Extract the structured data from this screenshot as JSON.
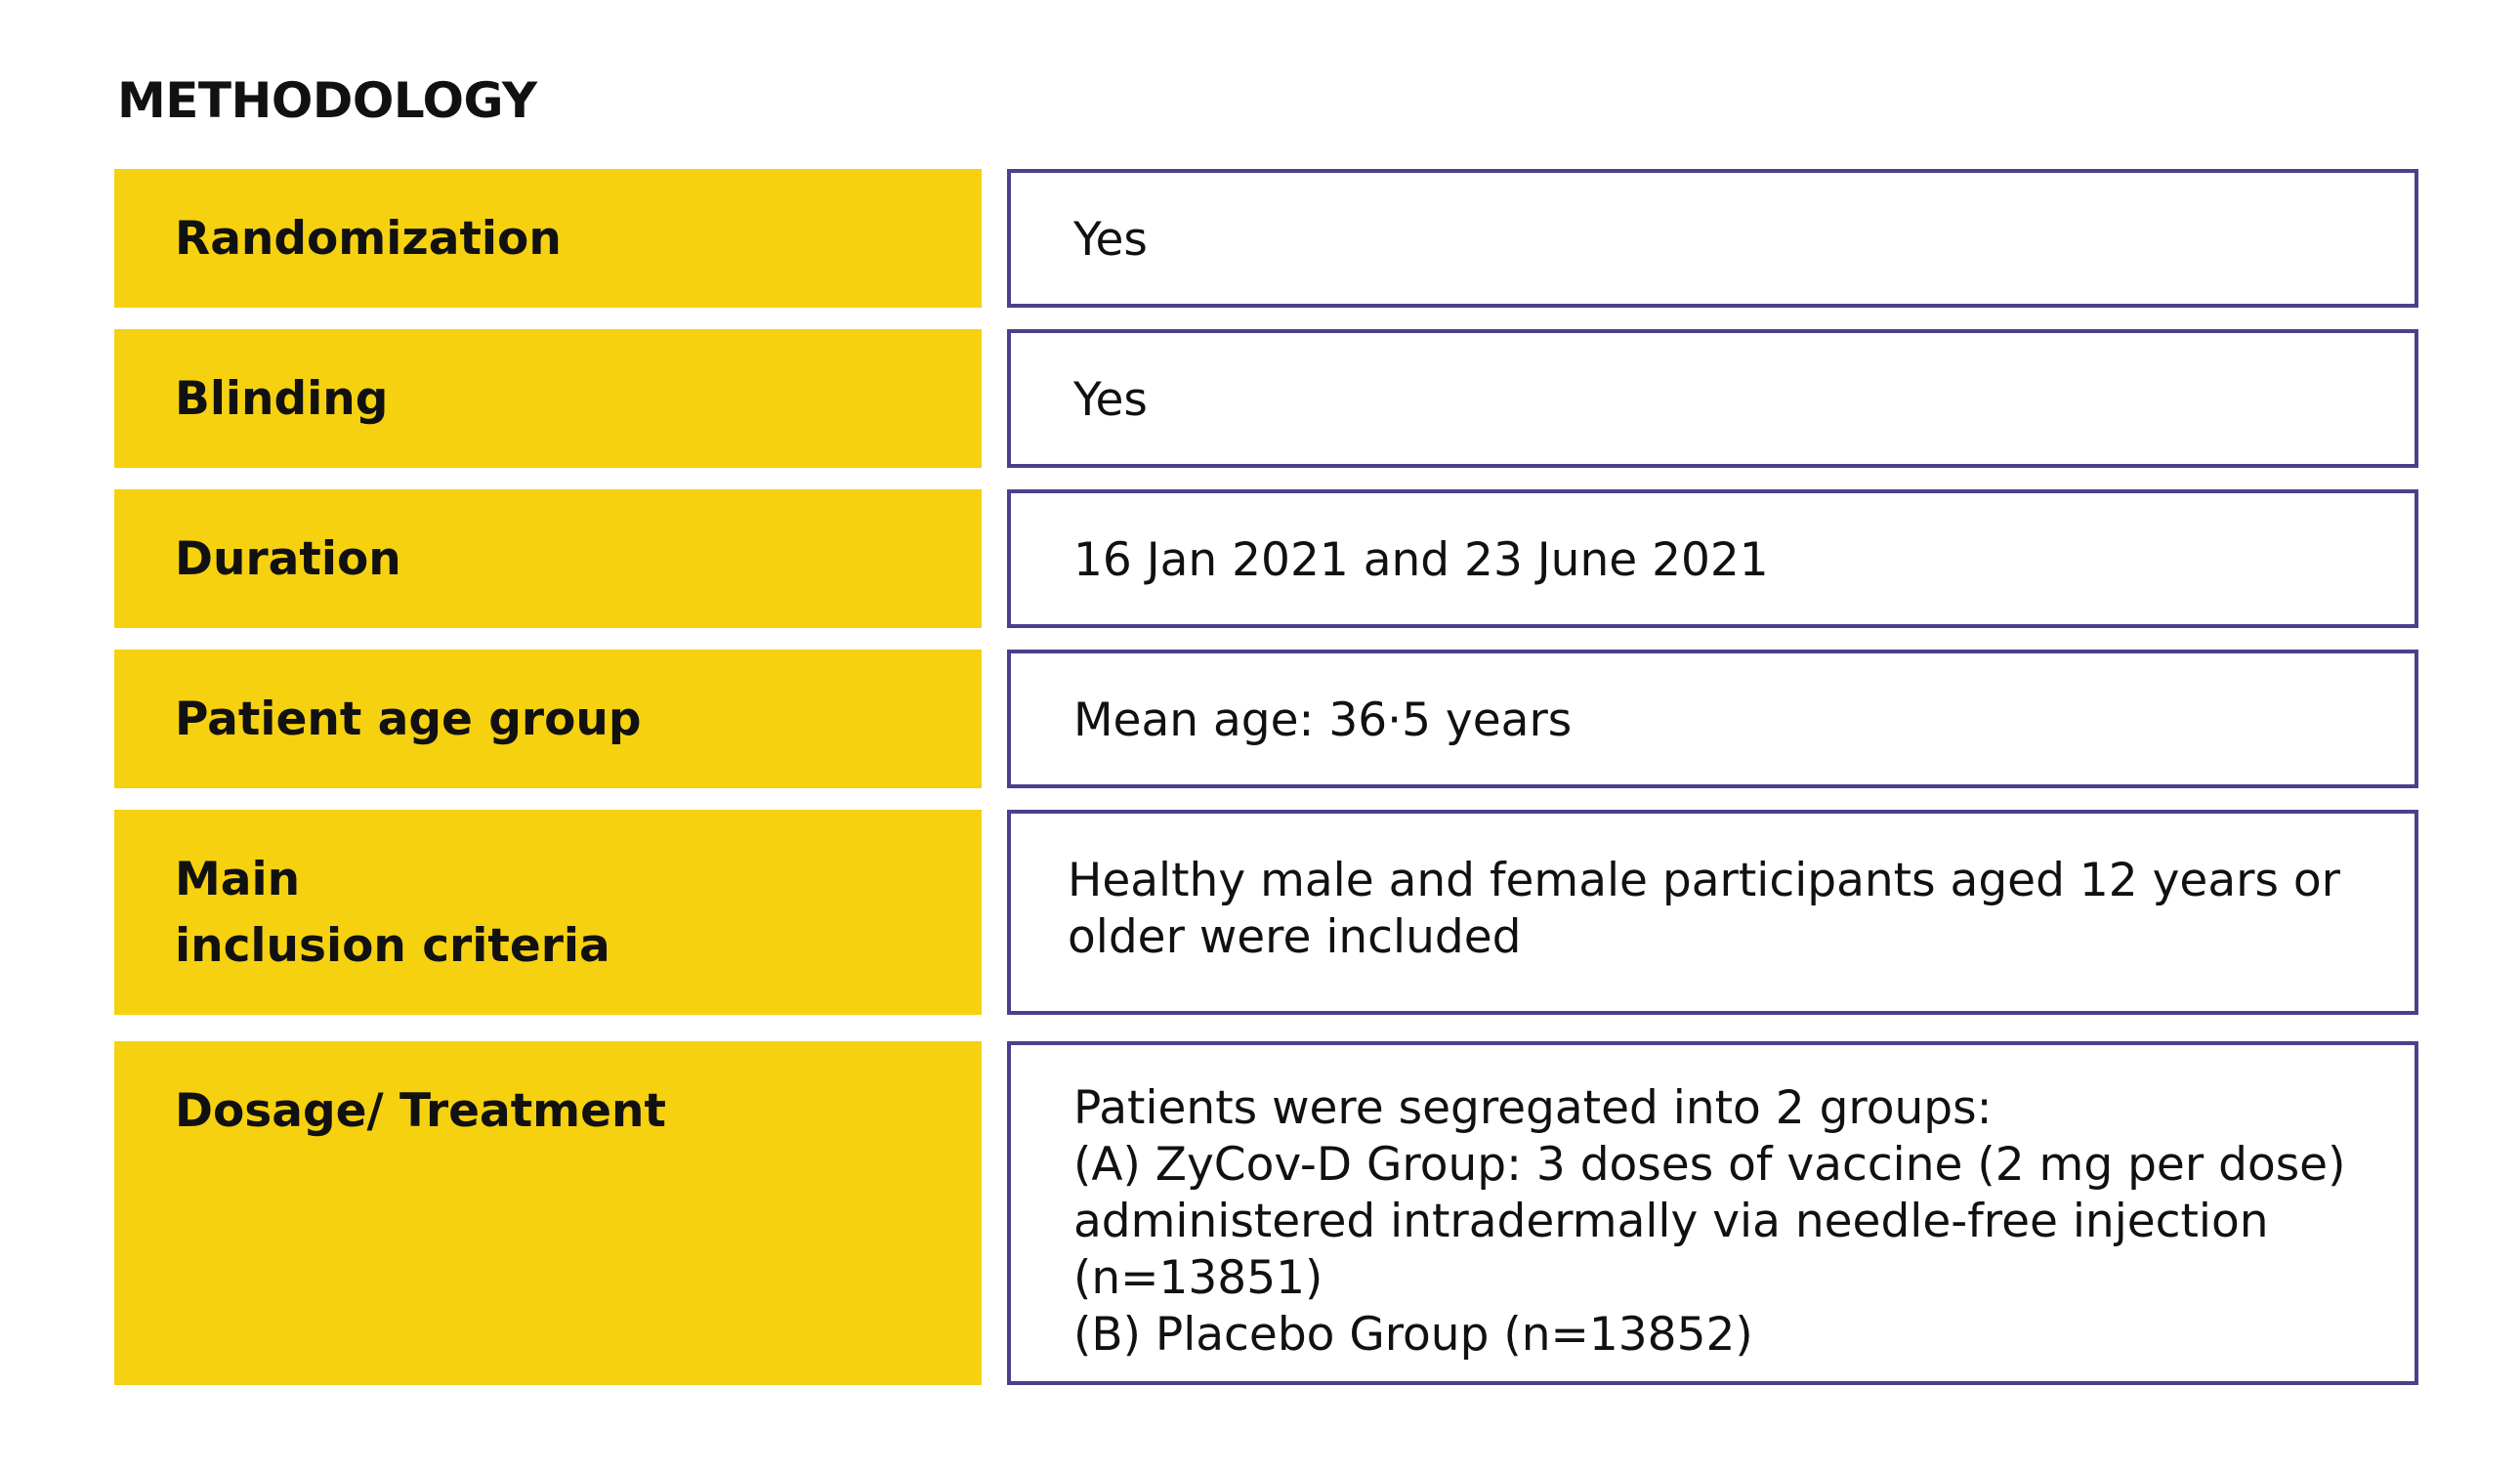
{
  "heading": "METHODOLOGY",
  "rows": [
    {
      "label": "Randomization",
      "value": "Yes"
    },
    {
      "label": "Blinding",
      "value": "Yes"
    },
    {
      "label": "Duration",
      "value": "16 Jan 2021 and 23 June 2021"
    },
    {
      "label": "Patient age group",
      "value": "Mean age: 36·5 years"
    },
    {
      "label_lines": [
        "Main",
        "inclusion criteria"
      ],
      "value_lines": [
        "Healthy male and female participants aged 12 years or",
        "older were included"
      ]
    },
    {
      "label": "Dosage/ Treatment",
      "value_lines": [
        "Patients were segregated into 2 groups:",
        "(A) ZyCov-D Group: 3 doses of vaccine (2 mg per dose)",
        "administered intradermally via needle-free injection",
        "(n=13851)",
        "(B) Placebo Group (n=13852)"
      ]
    }
  ],
  "colors": {
    "label_background": "#F6D110",
    "value_border": "#4E3F8C",
    "text": "#111111"
  }
}
